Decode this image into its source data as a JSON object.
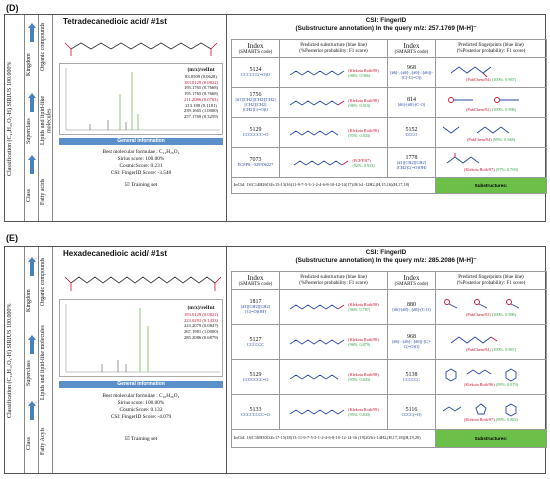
{
  "panels": [
    {
      "letter": "(D)",
      "title": "Tetradecanedioic acid/ #1st",
      "classification": "Classification (C₁₄H₂₆O₄-H) SIRIUS 100.000%",
      "ranks": [
        "Kingdom",
        "Superclass",
        "Class"
      ],
      "rank_values": [
        "Organic compounds",
        "Lipids and lipid-like molecules",
        "Fatty acids"
      ],
      "mz_header": "(m/z)/relInt",
      "mz_rows": [
        {
          "text": "83.0509 (0.0628)",
          "highlight": false
        },
        {
          "text": "183.0129 (0.0822)",
          "highlight": true
        },
        {
          "text": "195.1765 (0.7668)",
          "highlight": false
        },
        {
          "text": "195.1765 (0.7668)",
          "highlight": false
        },
        {
          "text": "211.2086 (0.0763)",
          "highlight": true
        },
        {
          "text": "213.188 (0.1181)",
          "highlight": false
        },
        {
          "text": "239.1665 (1.0000)",
          "highlight": false
        },
        {
          "text": "257.1769 (0.3259)",
          "highlight": false
        }
      ],
      "general_label": "General information",
      "best_formula": "Best molecular formulae : C₁₄H₂₆O₄",
      "sirius_score": "Sirius score: 100.00%",
      "cosmic_score": "CosmicScore: 0.231",
      "fingerid_score": "CSI: FingerID Score: -3.548",
      "training": "Training set",
      "csi_title": "CSI: FingerID",
      "csi_subtitle": "(Substructure annotation) In the query m/z: 257.1769 [M-H]⁻",
      "col_index": "Index",
      "col_smarts": "(SMARTS code)",
      "col_pred_sub": "Predicted substructure (blue line)",
      "col_pred_sub2": "(%Posterior probability: F1 score)",
      "col_pred_fp": "Predicted fingerprints (blue line)",
      "col_pred_fp2": "(%Posterior probability: F1 score)",
      "rows": [
        {
          "index": "5124",
          "smarts": "CCCCCC(=O)O",
          "ann": "(Klekota Roth/89)",
          "prob": "(96%: 0.966)",
          "index2": "968",
          "smarts2": "[#6]-,:[#6]-,:[#6]-,:[#6](-[C]-C(=O))",
          "fp": "(PubChem/94)",
          "fpprob": "(100%: 0.967)"
        },
        {
          "index": "1756",
          "smarts": "[#1][CH2][CH2][CH2][CH2][CH2][CH2]C(=O)O",
          "ann": "(Klekota Roth/98)",
          "prob": "(96%: 0.919)",
          "index2": "814",
          "smarts2": "[#6]-[#8]-(C-O)",
          "fp": "(PubChem/92)",
          "fpprob": "(100%: 0.996)"
        },
        {
          "index": "5129",
          "smarts": "CCCCCCC=O",
          "ann": "(Klekota Roth/98)",
          "prob": "(95%: 0.843)",
          "index2": "5152",
          "smarts2": "CCCO",
          "fp": "(PubChem/94)",
          "fpprob": "(99%: 0.948)"
        },
        {
          "index": "7073",
          "smarts": "ECFP6: -329506227",
          "ann": "(ECFP/87)",
          "prob": "(92%: 0.933)",
          "index2": "1778",
          "smarts2": "[#1][CH2][CH2][CH2]C(=O)OH]",
          "fp": "(Klekota Roth/97)",
          "fpprob": "(97%: 0.769)"
        }
      ],
      "inchi": "InChI: 1S/C14H26O4/c15-13(16)11-9-7-5-3-1-2-4-6-8-10-12-14(17)18/ h1-12H2,(H,15,16)(H,17,18)",
      "substructures_label": "Substructures:"
    },
    {
      "letter": "(E)",
      "title": "Hexadecanedioic acid/ #1st",
      "classification": "Classification (C₁₆H₃₀O₄-H) SIRIUS 100.000%",
      "ranks": [
        "Kingdom",
        "Superclass",
        "Class"
      ],
      "rank_values": [
        "Organic compounds",
        "Lipids and lipid-like molecules",
        "Fatty Acyls"
      ],
      "mz_header": "(m/z)/relInt",
      "mz_rows": [
        {
          "text": "183.0129 (0.0822)",
          "highlight": true
        },
        {
          "text": "223.0293 (0.1433)",
          "highlight": true
        },
        {
          "text": "223.2079 (0.0847)",
          "highlight": false
        },
        {
          "text": "267.1981 (1.0000)",
          "highlight": false
        },
        {
          "text": "285.2086 (0.6879)",
          "highlight": false
        }
      ],
      "general_label": "General information",
      "best_formula": "Best molecular formulae : C₁₆H₃₀O₄",
      "sirius_score": "Sirius score: 100.00%",
      "cosmic_score": "CosmicScore: 0.132",
      "fingerid_score": "CSI: FingerID Score: -4.079",
      "training": "Training set",
      "csi_title": "CSI: FingerID",
      "csi_subtitle": "(Substructure annotation) In the query m/z: 285.2086 [M-H]⁻",
      "col_index": "Index",
      "col_smarts": "(SMARTS code)",
      "col_pred_sub": "Predicted substructure (blue line)",
      "col_pred_sub2": "(%Posterior probability: F1 score)",
      "col_pred_fp": "Predicted fingerprints (blue line)",
      "col_pred_fp2": "(%Posterior probability: F1 score)",
      "rows": [
        {
          "index": "1817",
          "smarts": "[#1][CH2][CH2][C(=O)OH]",
          "ann": "(Klekota Roth/98)",
          "prob": "(96%: 0.787)",
          "index2": "880",
          "smarts2": "[#6]-[#8]-,:[#8]-(C-O)",
          "fp": "(PubChem/93)",
          "fpprob": "(100%: 0.996)"
        },
        {
          "index": "5127",
          "smarts": "CCCCCC",
          "ann": "(Klekota Roth/98)",
          "prob": "(96%: 0.879)",
          "index2": "968",
          "smarts2": "[#6]-,:[#6]-,:[#6](-[C]-C(=O)O)",
          "fp": "(PubChem/94)",
          "fpprob": "(100%: 0.967)"
        },
        {
          "index": "5129",
          "smarts": "CCCCCCC=O",
          "ann": "(Klekota Roth/98)",
          "prob": "(95%: 0.843)",
          "index2": "5138",
          "smarts2": "CCCCCC",
          "fp": "(Klekota Roth/96)",
          "fpprob": "(99%: 0.979)"
        },
        {
          "index": "5133",
          "smarts": "CCCCCCCC=O",
          "ann": "(Klekota Roth/99)",
          "prob": "(95%: 0.843)",
          "index2": "5116",
          "smarts2": "CCCC(=O)",
          "fp": "(Klekota Roth/97)",
          "fpprob": "(99%: 0.882)"
        }
      ],
      "inchi": "InChI: 1S/C16H30O4/c17-15(18)13-11-9-7-5-3-1-2-4-6-8-10-12-14-16 (19)20/h1-14H2,(H,17,18)(H,19,20)",
      "substructures_label": "Substructures:"
    }
  ],
  "colors": {
    "accent_blue": "#4a7fc0",
    "bar_blue": "#5b8fc9",
    "highlight_red": "#c8102e",
    "green": "#6cc04a",
    "prob_green": "#2a9a3a"
  }
}
